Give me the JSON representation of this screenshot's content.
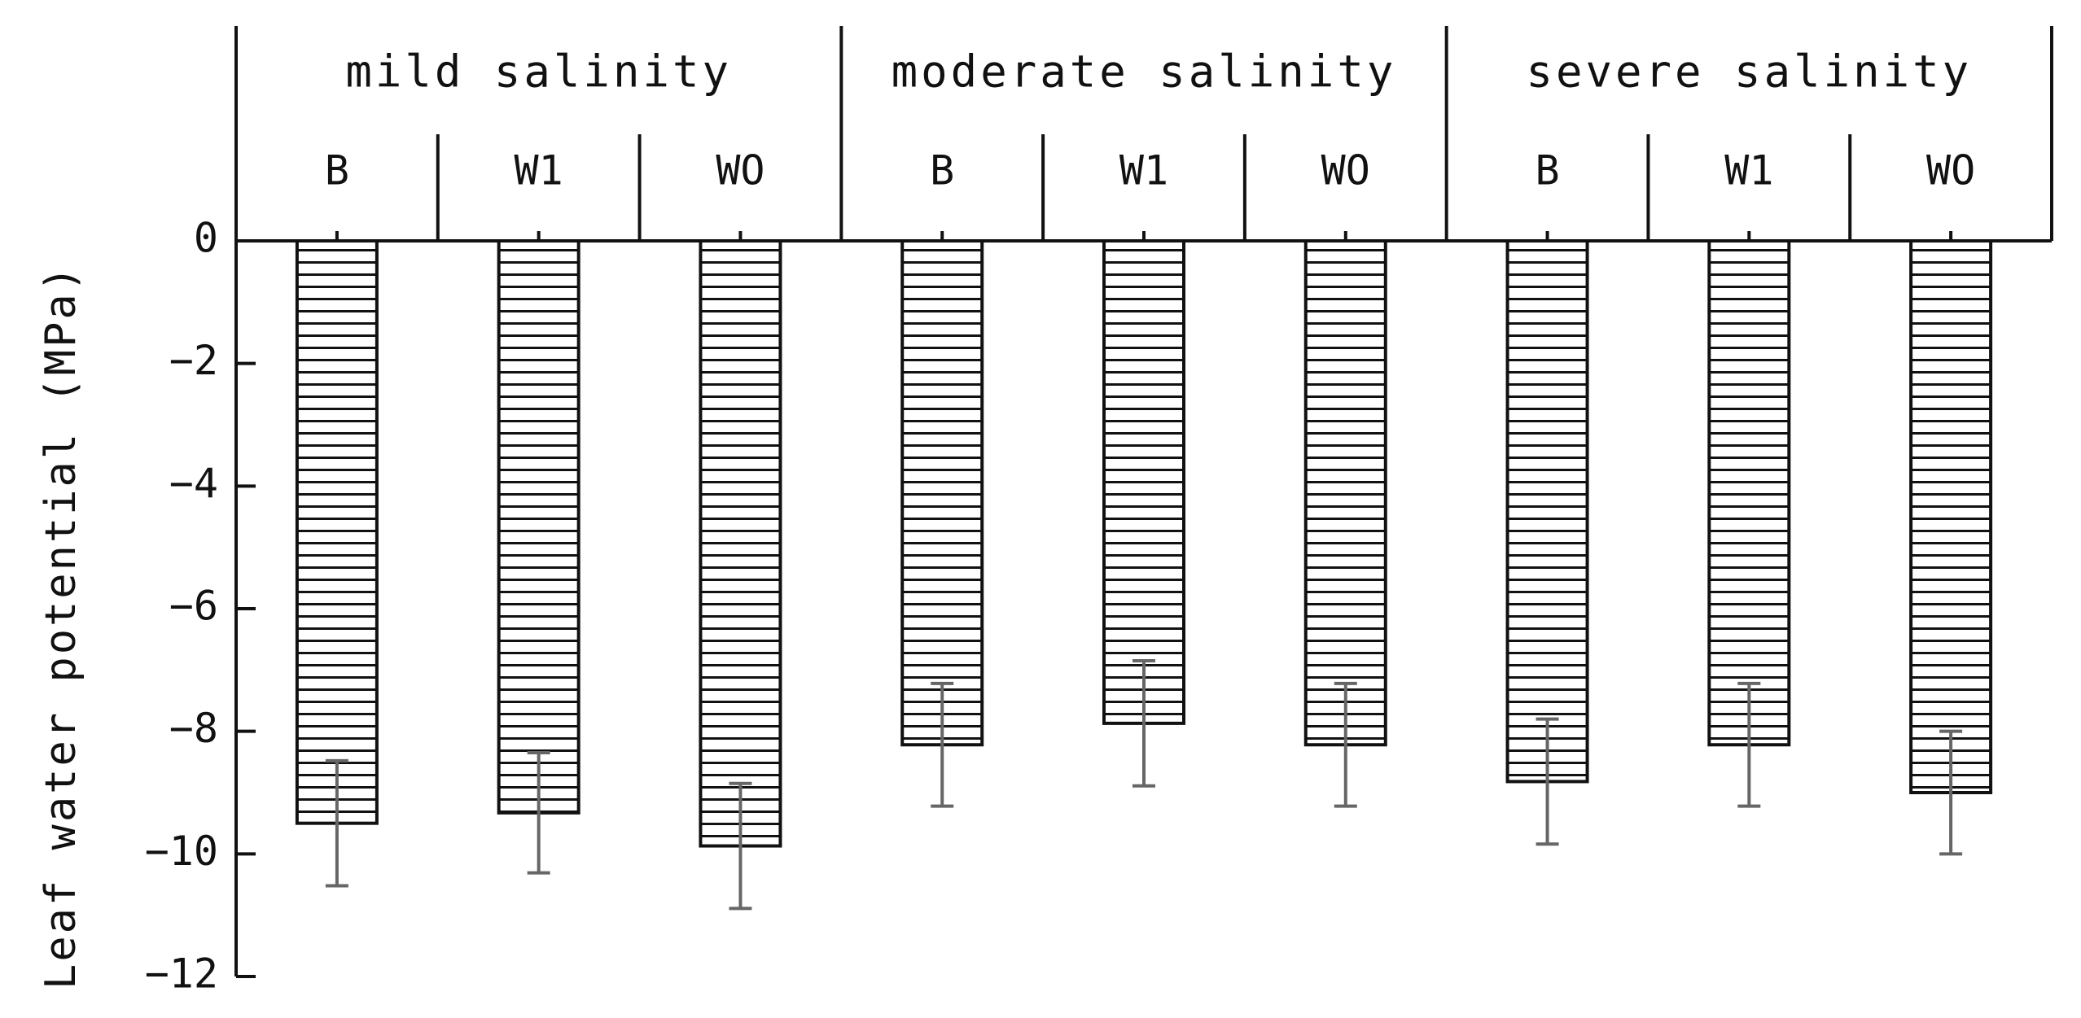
{
  "chart_data": {
    "type": "bar",
    "ylabel": "Leaf water potential (MPa)",
    "ylim": [
      -12,
      0
    ],
    "yticks": [
      0,
      -2,
      -4,
      -6,
      -8,
      -10,
      -12
    ],
    "groups": [
      {
        "label": "mild salinity",
        "categories": [
          "B",
          "W1",
          "WO"
        ]
      },
      {
        "label": "moderate salinity",
        "categories": [
          "B",
          "W1",
          "WO"
        ]
      },
      {
        "label": "severe salinity",
        "categories": [
          "B",
          "W1",
          "WO"
        ]
      }
    ],
    "values": [
      -9.5,
      -9.33,
      -9.87,
      -8.22,
      -7.87,
      -8.22,
      -8.82,
      -8.22,
      -9.0
    ],
    "errors": [
      1.02,
      0.98,
      1.02,
      1.0,
      1.02,
      1.0,
      1.02,
      1.0,
      1.0
    ],
    "grid": false,
    "colors": {
      "bar_fill": "#ffffff",
      "bar_hatch": "#111111",
      "error_bar": "#666666",
      "axis": "#111111"
    }
  }
}
